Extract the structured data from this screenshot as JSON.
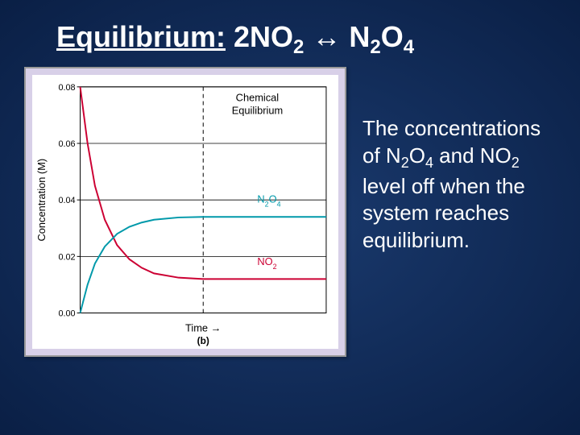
{
  "title": {
    "label": "Equilibrium:",
    "equation_parts": [
      "2NO",
      "2",
      " ↔ N",
      "2",
      "O",
      "4"
    ]
  },
  "description": {
    "parts": [
      "The concentrations of N",
      "2",
      "O",
      "4",
      " and NO",
      "2",
      " level off when the system reaches equilibrium."
    ]
  },
  "chart": {
    "type": "line",
    "title": "Chemical Equilibrium",
    "title_fontsize": 13,
    "ylabel": "Concentration (M)",
    "xlabel": "Time",
    "xlabel_arrow": "→",
    "sublabel": "(b)",
    "label_fontsize": 13,
    "ylim": [
      0,
      0.08
    ],
    "yticks": [
      0.0,
      0.02,
      0.04,
      0.06,
      0.08
    ],
    "ytick_labels": [
      "0.00",
      "0.02",
      "0.04",
      "0.06",
      "0.08"
    ],
    "xlim": [
      0,
      10
    ],
    "background_color": "#ffffff",
    "grid_color": "#000000",
    "axis_color": "#000000",
    "equilibrium_x": 5,
    "series": [
      {
        "name": "NO2",
        "label": "NO₂",
        "label_subscript": "2",
        "color": "#cc0033",
        "data_x": [
          0,
          0.3,
          0.6,
          1.0,
          1.5,
          2.0,
          2.5,
          3.0,
          4.0,
          5.0,
          6.0,
          8.0,
          10.0
        ],
        "data_y": [
          0.08,
          0.06,
          0.045,
          0.033,
          0.024,
          0.019,
          0.016,
          0.014,
          0.0125,
          0.012,
          0.012,
          0.012,
          0.012
        ],
        "label_pos_x": 7.2,
        "label_pos_y": 0.017,
        "width": 2
      },
      {
        "name": "N2O4",
        "label": "N₂O₄",
        "label_subscript_1": "2",
        "label_subscript_2": "4",
        "color": "#0099aa",
        "data_x": [
          0,
          0.3,
          0.6,
          1.0,
          1.5,
          2.0,
          2.5,
          3.0,
          4.0,
          5.0,
          6.0,
          8.0,
          10.0
        ],
        "data_y": [
          0.0,
          0.01,
          0.0175,
          0.0235,
          0.028,
          0.0305,
          0.032,
          0.033,
          0.0338,
          0.034,
          0.034,
          0.034,
          0.034
        ],
        "label_pos_x": 7.2,
        "label_pos_y": 0.039,
        "width": 2
      }
    ]
  }
}
